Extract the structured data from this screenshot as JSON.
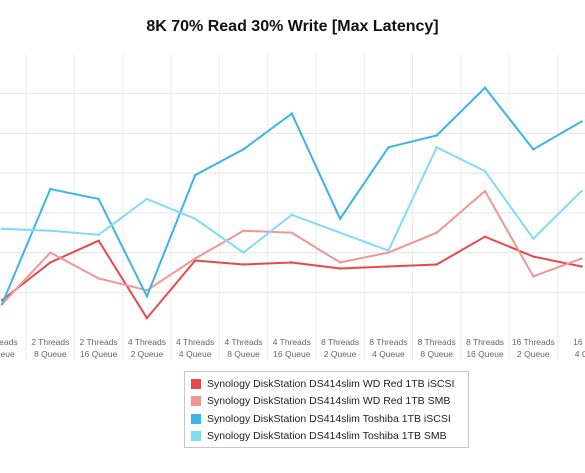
{
  "chart_data": {
    "type": "line",
    "title": "8K 70% Read 30% Write [Max Latency]",
    "xlabel": "",
    "ylabel": "",
    "grid": true,
    "legend_position": "bottom",
    "categories": [
      [
        "Threads",
        "Queue"
      ],
      [
        "2 Threads",
        "8 Queue"
      ],
      [
        "2 Threads",
        "16 Queue"
      ],
      [
        "4 Threads",
        "2 Queue"
      ],
      [
        "4 Threads",
        "4 Queue"
      ],
      [
        "4 Threads",
        "8 Queue"
      ],
      [
        "4 Threads",
        "16 Queue"
      ],
      [
        "8 Threads",
        "2 Queue"
      ],
      [
        "8 Threads",
        "4 Queue"
      ],
      [
        "8 Threads",
        "8 Queue"
      ],
      [
        "8 Threads",
        "16 Queue"
      ],
      [
        "16 Threads",
        "2 Queue"
      ],
      [
        "16 T",
        "4 Q"
      ]
    ],
    "ylim": [
      0,
      7
    ],
    "series": [
      {
        "name": "Synology DiskStation DS414slim WD Red 1TB iSCSI",
        "color": "#e5484d",
        "values": [
          0.8,
          1.75,
          2.3,
          0.35,
          1.8,
          1.7,
          1.75,
          1.6,
          1.65,
          1.7,
          2.4,
          1.9,
          1.65
        ]
      },
      {
        "name": "Synology DiskStation DS414slim WD Red 1TB SMB",
        "color": "#f29595",
        "values": [
          0.7,
          2.0,
          1.35,
          1.05,
          1.85,
          2.55,
          2.5,
          1.75,
          2.0,
          2.5,
          3.55,
          1.4,
          1.85
        ]
      },
      {
        "name": "Synology DiskStation DS414slim Toshiba 1TB iSCSI",
        "color": "#3ab5e5",
        "values": [
          0.7,
          3.6,
          3.35,
          0.9,
          3.95,
          4.6,
          5.5,
          2.85,
          4.65,
          4.95,
          6.15,
          4.6,
          5.3
        ]
      },
      {
        "name": "Synology DiskStation DS414slim Toshiba 1TB SMB",
        "color": "#80dcf5",
        "values": [
          2.6,
          2.55,
          2.45,
          3.35,
          2.85,
          2.0,
          2.95,
          2.5,
          2.05,
          4.65,
          4.05,
          2.35,
          3.55
        ]
      }
    ]
  }
}
